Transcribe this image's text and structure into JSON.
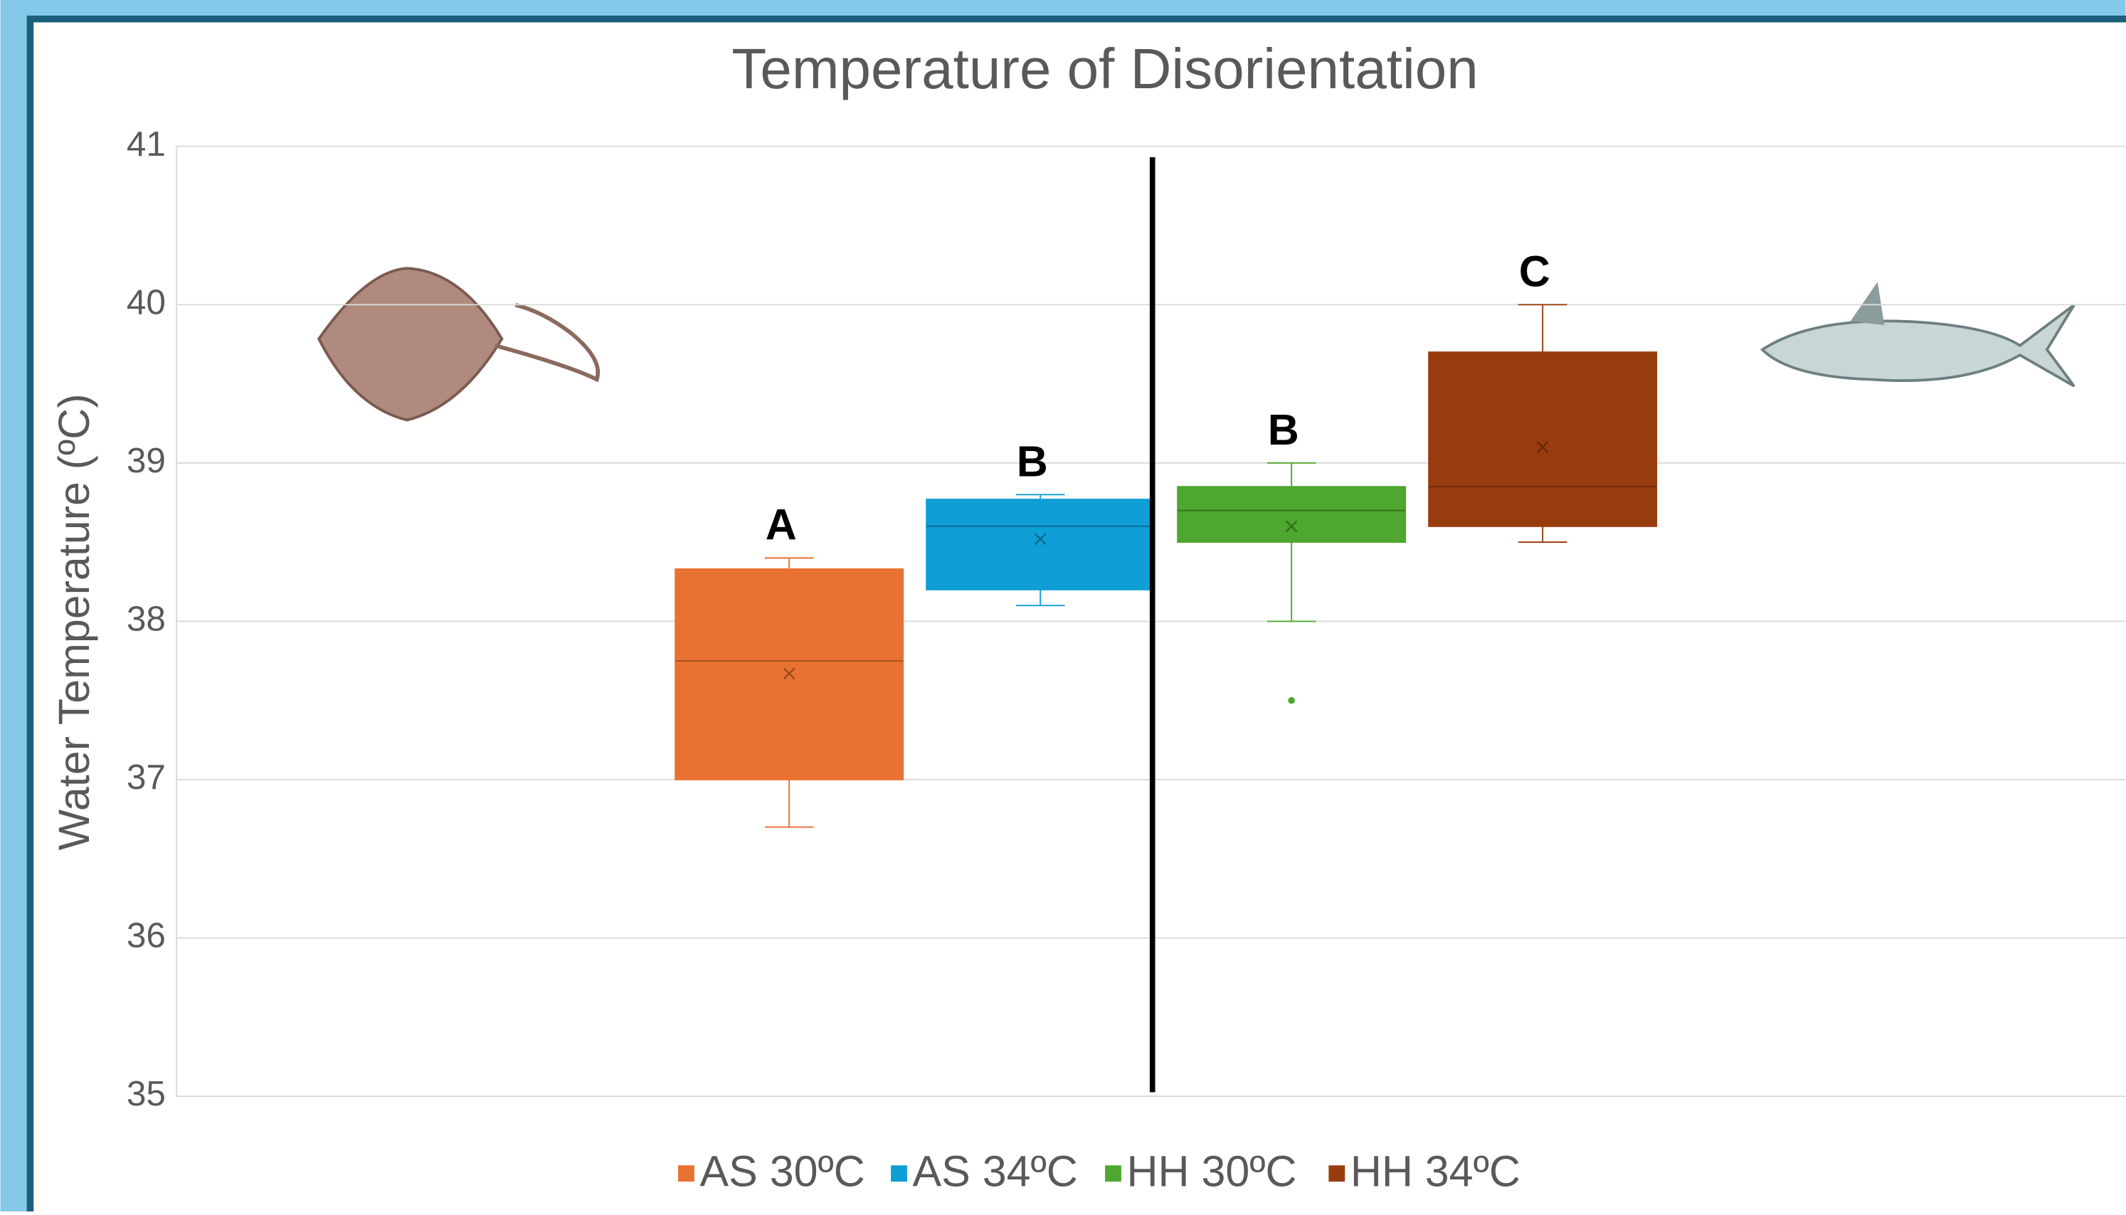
{
  "chart_data": {
    "type": "box",
    "title": "Temperature of Disorientation",
    "y_label": "Water Temperature (ºC)",
    "ylim": [
      35,
      41
    ],
    "yticks": [
      35,
      36,
      37,
      38,
      39,
      40,
      41
    ],
    "grid": true,
    "legend": "bottom",
    "series": [
      {
        "name": "AS 30ºC",
        "color": "#e97132",
        "letter": "A",
        "min": 36.7,
        "q1": 37.0,
        "median": 37.75,
        "q3": 38.33,
        "max": 38.4,
        "mean": 37.67,
        "outliers": []
      },
      {
        "name": "AS 34ºC",
        "color": "#0f9ed5",
        "letter": "B",
        "min": 38.1,
        "q1": 38.2,
        "median": 38.6,
        "q3": 38.77,
        "max": 38.8,
        "mean": 38.52,
        "outliers": []
      },
      {
        "name": "HH 30ºC",
        "color": "#4ea72e",
        "letter": "B",
        "min": 38.0,
        "q1": 38.5,
        "median": 38.7,
        "q3": 38.85,
        "max": 39.0,
        "mean": 38.6,
        "outliers": [
          37.5
        ]
      },
      {
        "name": "HH 34ºC",
        "color": "#983c0e",
        "letter": "C",
        "min": 38.5,
        "q1": 38.6,
        "median": 38.85,
        "q3": 39.7,
        "max": 40.0,
        "mean": 39.1,
        "outliers": []
      }
    ]
  }
}
